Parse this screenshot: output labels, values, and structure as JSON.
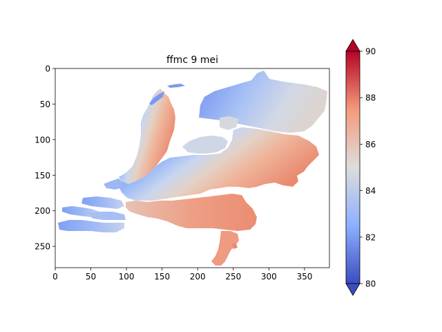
{
  "title": "ffmc 9 mei",
  "x_axis": {
    "ticks": [
      "0",
      "50",
      "100",
      "150",
      "200",
      "250",
      "300",
      "350"
    ],
    "range": [
      0,
      385
    ]
  },
  "y_axis": {
    "ticks": [
      "0",
      "50",
      "100",
      "150",
      "200",
      "250"
    ],
    "range": [
      0,
      280
    ]
  },
  "colorbar": {
    "colormap": "coolwarm",
    "min": 80,
    "max": 90,
    "ticks": [
      "80",
      "82",
      "84",
      "86",
      "88",
      "90"
    ],
    "extend": "both",
    "low_color": "#3b4cc0",
    "mid_color": "#dddddd",
    "high_color": "#b40426"
  }
}
